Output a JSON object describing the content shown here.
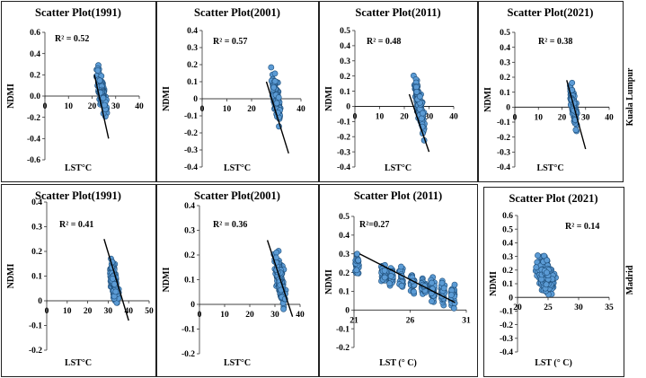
{
  "rows": [
    {
      "city": "Kuala   Lumpur"
    },
    {
      "city": "Madrid"
    }
  ],
  "chart_data": [
    {
      "type": "scatter",
      "row": 0,
      "col": 0,
      "title": "Scatter Plot(1991)",
      "xlabel": "LST°C",
      "ylabel": "NDMI",
      "r2": "R² = 0.52",
      "xlim": [
        0,
        40
      ],
      "ylim": [
        -0.6,
        0.6
      ],
      "xticks": [
        "0",
        "10",
        "20",
        "30",
        "40"
      ],
      "yticks": [
        "-0.6",
        "-0.4",
        "-0.2",
        "0.0",
        "0.2",
        "0.4",
        "0.6"
      ],
      "cloud": {
        "xc": 24,
        "xs": 2,
        "yc": 0.05,
        "ys": 0.17,
        "slope": -0.083,
        "n": 170,
        "xmin": 21,
        "xmax": 29,
        "ymin": -0.32,
        "ymax": 0.52
      },
      "trend": [
        [
          21,
          0.2
        ],
        [
          27,
          -0.4
        ]
      ]
    },
    {
      "type": "scatter",
      "row": 0,
      "col": 1,
      "title": "Scatter Plot(2001)",
      "xlabel": "LST°C",
      "ylabel": "NDMI",
      "r2": "R² = 0.57",
      "xlim": [
        0,
        40
      ],
      "ylim": [
        -0.4,
        0.4
      ],
      "xticks": [
        "0",
        "10",
        "20",
        "30",
        "40"
      ],
      "yticks": [
        "-0.4",
        "-0.3",
        "-0.2",
        "-0.1",
        "0",
        "0.1",
        "0.2",
        "0.3",
        "0.4"
      ],
      "cloud": {
        "xc": 30,
        "xs": 2.2,
        "yc": 0.0,
        "ys": 0.13,
        "slope": -0.055,
        "n": 170,
        "xmin": 26,
        "xmax": 35,
        "ymin": -0.32,
        "ymax": 0.33
      },
      "trend": [
        [
          26,
          0.1
        ],
        [
          35,
          -0.32
        ]
      ]
    },
    {
      "type": "scatter",
      "row": 0,
      "col": 2,
      "title": "Scatter Plot(2011)",
      "xlabel": "LST°C",
      "ylabel": "NDMI",
      "r2": "R² = 0.48",
      "xlim": [
        0,
        40
      ],
      "ylim": [
        -0.4,
        0.5
      ],
      "xticks": [
        "0",
        "10",
        "20",
        "30",
        "40"
      ],
      "yticks": [
        "-0.4",
        "-0.3",
        "-0.2",
        "-0.1",
        "0",
        "0.1",
        "0.2",
        "0.3",
        "0.4",
        "0.5"
      ],
      "cloud": {
        "xc": 26,
        "xs": 2.2,
        "yc": 0.02,
        "ys": 0.14,
        "slope": -0.07,
        "n": 190,
        "xmin": 22,
        "xmax": 31,
        "ymin": -0.33,
        "ymax": 0.42
      },
      "trend": [
        [
          22,
          0.08
        ],
        [
          30,
          -0.3
        ]
      ]
    },
    {
      "type": "scatter",
      "row": 0,
      "col": 3,
      "title": "Scatter Plot(2021)",
      "xlabel": "LST°C",
      "ylabel": "NDMI",
      "r2": "R² = 0.38",
      "xlim": [
        0,
        40
      ],
      "ylim": [
        -0.4,
        0.5
      ],
      "xticks": [
        "0",
        "10",
        "20",
        "30",
        "40"
      ],
      "yticks": [
        "-0.4",
        "-0.3",
        "-0.2",
        "-0.1",
        "0",
        "0.1",
        "0.2",
        "0.3",
        "0.4",
        "0.5"
      ],
      "cloud": {
        "xc": 25,
        "xs": 1.8,
        "yc": 0.0,
        "ys": 0.12,
        "slope": -0.06,
        "n": 160,
        "xmin": 22,
        "xmax": 30,
        "ymin": -0.3,
        "ymax": 0.28
      },
      "trend": [
        [
          22,
          0.18
        ],
        [
          30,
          -0.28
        ]
      ]
    },
    {
      "type": "scatter",
      "row": 1,
      "col": 0,
      "title": "Scatter Plot(1991)",
      "xlabel": "LST°C",
      "ylabel": "NDMI",
      "r2": "R² = 0.41",
      "xlim": [
        0,
        50
      ],
      "ylim": [
        -0.2,
        0.4
      ],
      "xticks": [
        "0",
        "10",
        "20",
        "30",
        "40",
        "50"
      ],
      "yticks": [
        "-0.2",
        "-0.1",
        "0",
        "0.1",
        "0.2",
        "0.3",
        "0.4"
      ],
      "cloud": {
        "xc": 33,
        "xs": 2.4,
        "yc": 0.07,
        "ys": 0.09,
        "slope": -0.03,
        "n": 180,
        "xmin": 27,
        "xmax": 41,
        "ymin": -0.13,
        "ymax": 0.33
      },
      "trend": [
        [
          28,
          0.25
        ],
        [
          40,
          -0.08
        ]
      ]
    },
    {
      "type": "scatter",
      "row": 1,
      "col": 1,
      "title": "Scatter Plot(2001)",
      "xlabel": "LST°C",
      "ylabel": "NDMI",
      "r2": "R² = 0.36",
      "xlim": [
        0,
        40
      ],
      "ylim": [
        -0.2,
        0.4
      ],
      "xticks": [
        "0",
        "10",
        "20",
        "30",
        "40"
      ],
      "yticks": [
        "-0.2",
        "-0.1",
        "0",
        "0.1",
        "0.2",
        "0.3",
        "0.4"
      ],
      "cloud": {
        "xc": 32,
        "xs": 2.2,
        "yc": 0.1,
        "ys": 0.1,
        "slope": -0.035,
        "n": 190,
        "xmin": 27,
        "xmax": 38,
        "ymin": -0.08,
        "ymax": 0.34
      },
      "trend": [
        [
          27,
          0.26
        ],
        [
          37,
          -0.05
        ]
      ]
    },
    {
      "type": "scatter",
      "row": 1,
      "col": 2,
      "title": "Scatter Plot (2011)",
      "xlabel": "LST (° C)",
      "ylabel": "NDMI",
      "r2": "R²=0.27",
      "xlim": [
        21,
        31
      ],
      "ylim": [
        -0.2,
        0.5
      ],
      "xticks": [
        "21",
        "26",
        "31"
      ],
      "yticks": [
        "-0.2",
        "-0.1",
        "0",
        "0.1",
        "0.2",
        "0.3",
        "0.4",
        "0.5"
      ],
      "cloud": {
        "xc": 25,
        "xs": 2.0,
        "yc": 0.17,
        "ys": 0.09,
        "slope": -0.02,
        "n": 260,
        "xmin": 21,
        "xmax": 30,
        "ymin": -0.14,
        "ymax": 0.38,
        "columns": true
      },
      "trend": [
        [
          21.5,
          0.3
        ],
        [
          30,
          0.04
        ]
      ]
    },
    {
      "type": "scatter",
      "row": 1,
      "col": 3,
      "title": "Scatter Plot (2021)",
      "xlabel": "LST (° C)",
      "ylabel": "NDMI",
      "r2": "R² = 0.14",
      "xlim": [
        20,
        35
      ],
      "ylim": [
        -0.4,
        0.6
      ],
      "xticks": [
        "20",
        "25",
        "30",
        "35"
      ],
      "yticks": [
        "-0.4",
        "-0.3",
        "-0.2",
        "-0.1",
        "0",
        "0.1",
        "0.2",
        "0.3",
        "0.4",
        "0.5",
        "0.6"
      ],
      "cloud": {
        "xc": 24.5,
        "xs": 1.6,
        "yc": 0.17,
        "ys": 0.15,
        "slope": -0.03,
        "n": 320,
        "xmin": 22,
        "xmax": 30,
        "ymin": -0.3,
        "ymax": 0.52
      },
      "trend": null
    }
  ]
}
